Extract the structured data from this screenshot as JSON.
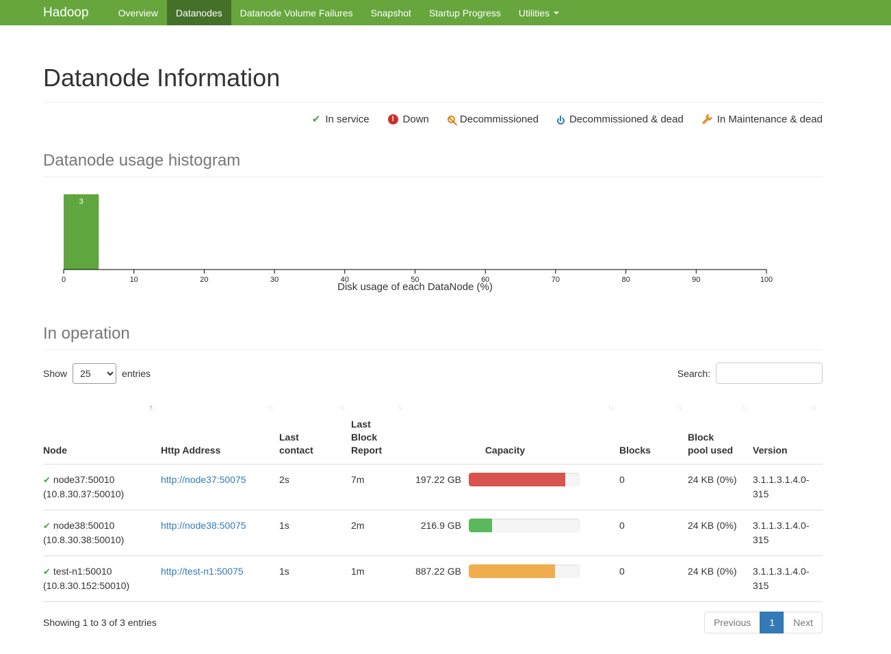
{
  "navbar": {
    "brand": "Hadoop",
    "items": [
      {
        "label": "Overview",
        "active": false,
        "dropdown": false
      },
      {
        "label": "Datanodes",
        "active": true,
        "dropdown": false
      },
      {
        "label": "Datanode Volume Failures",
        "active": false,
        "dropdown": false
      },
      {
        "label": "Snapshot",
        "active": false,
        "dropdown": false
      },
      {
        "label": "Startup Progress",
        "active": false,
        "dropdown": false
      },
      {
        "label": "Utilities",
        "active": false,
        "dropdown": true
      }
    ]
  },
  "page_title": "Datanode Information",
  "legend": {
    "items": [
      {
        "name": "in-service",
        "icon": "check-icon",
        "label": "In service",
        "color": "#46a546"
      },
      {
        "name": "down",
        "icon": "exclamation-circle-icon",
        "label": "Down",
        "color": "#c9302c"
      },
      {
        "name": "decommissioned",
        "icon": "ban-circle-icon",
        "label": "Decommissioned",
        "color": "#d58512"
      },
      {
        "name": "decommissioned-dead",
        "icon": "power-icon",
        "label": "Decommissioned & dead",
        "color": "#337ab7"
      },
      {
        "name": "maintenance-dead",
        "icon": "wrench-icon",
        "label": "In Maintenance & dead",
        "color": "#e0912f"
      }
    ]
  },
  "sections": {
    "histogram_title": "Datanode usage histogram",
    "operation_title": "In operation"
  },
  "chart_data": {
    "type": "bar",
    "title": "",
    "xlabel": "Disk usage of each DataNode (%)",
    "ylabel": "",
    "xlim": [
      0,
      100
    ],
    "x_ticks": [
      0,
      10,
      20,
      30,
      40,
      50,
      60,
      70,
      80,
      90,
      100
    ],
    "bins": [
      {
        "x0": 0,
        "x1": 5,
        "count": 3
      }
    ],
    "bar_color": "#60a63e",
    "bar_label_color": "#ffffff",
    "grid": false,
    "legend_position": "none"
  },
  "table_controls": {
    "show_label": "Show",
    "page_size": "25",
    "entries_label": "entries",
    "search_label": "Search:",
    "search_value": ""
  },
  "table": {
    "columns": [
      {
        "key": "node",
        "label": "Node",
        "sorted": true
      },
      {
        "key": "http",
        "label": "Http Address",
        "sorted": false
      },
      {
        "key": "lastContact",
        "label": "Last contact",
        "sorted": false
      },
      {
        "key": "lastBlock",
        "label": "Last Block Report",
        "sorted": false
      },
      {
        "key": "capacity",
        "label": "Capacity",
        "sorted": false
      },
      {
        "key": "blocks",
        "label": "Blocks",
        "sorted": false
      },
      {
        "key": "blockPool",
        "label": "Block pool used",
        "sorted": false
      },
      {
        "key": "version",
        "label": "Version",
        "sorted": false
      }
    ],
    "rows": [
      {
        "status": "in-service",
        "node": "node37:50010",
        "node_ip": "(10.8.30.37:50010)",
        "http_address": "http://node37:50075",
        "last_contact": "2s",
        "last_block_report": "7m",
        "capacity": "197.22 GB",
        "capacity_used_pct": 87,
        "capacity_bar_color": "#d9534f",
        "blocks": "0",
        "block_pool_used": "24 KB (0%)",
        "version": "3.1.1.3.1.4.0-315"
      },
      {
        "status": "in-service",
        "node": "node38:50010",
        "node_ip": "(10.8.30.38:50010)",
        "http_address": "http://node38:50075",
        "last_contact": "1s",
        "last_block_report": "2m",
        "capacity": "216.9 GB",
        "capacity_used_pct": 21,
        "capacity_bar_color": "#5cb85c",
        "blocks": "0",
        "block_pool_used": "24 KB (0%)",
        "version": "3.1.1.3.1.4.0-315"
      },
      {
        "status": "in-service",
        "node": "test-n1:50010",
        "node_ip": "(10.8.30.152:50010)",
        "http_address": "http://test-n1:50075",
        "last_contact": "1s",
        "last_block_report": "1m",
        "capacity": "887.22 GB",
        "capacity_used_pct": 78,
        "capacity_bar_color": "#f0ad4e",
        "blocks": "0",
        "block_pool_used": "24 KB (0%)",
        "version": "3.1.1.3.1.4.0-315"
      }
    ]
  },
  "footer": {
    "showing_text": "Showing 1 to 3 of 3 entries",
    "pagination": {
      "previous": "Previous",
      "page": "1",
      "next": "Next"
    }
  }
}
